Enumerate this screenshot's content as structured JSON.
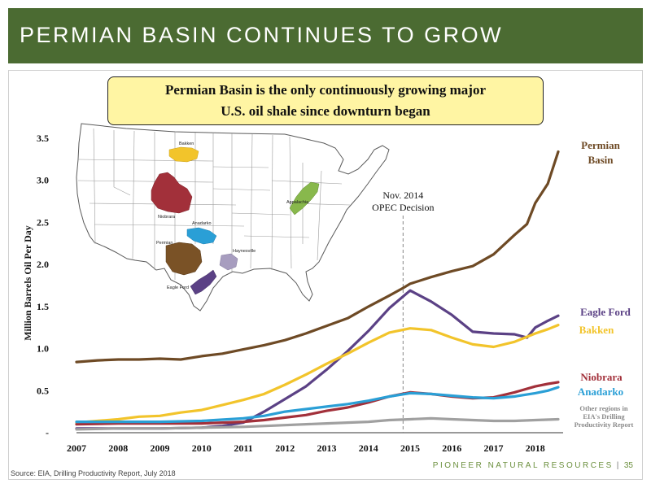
{
  "slide": {
    "title": "PERMIAN BASIN CONTINUES TO GROW",
    "callout_line1": "Permian Basin is the only continuously growing major",
    "callout_line2": "U.S. oil shale since downturn began",
    "source": "Source: EIA, Drilling Productivity Report, July 2018",
    "brand": "PIONEER NATURAL RESOURCES",
    "page_number": "35",
    "map_labels": {
      "bakken": "Bakken",
      "niobrara": "Niobrara",
      "anadarko": "Anadarko",
      "permian": "Permian",
      "haynesville": "Haynesville",
      "eagle_ford": "Eagle Ford",
      "appalachia": "Appalachia"
    }
  },
  "chart_data": {
    "type": "line",
    "ylabel": "Million Barrels Oil Per Day",
    "xlabel": "",
    "ylim": [
      0,
      3.5
    ],
    "xlim": [
      2007,
      2018.55
    ],
    "y_ticks": [
      "-",
      "0.5",
      "1.0",
      "1.5",
      "2.0",
      "2.5",
      "3.0",
      "3.5"
    ],
    "x_ticks": [
      "2007",
      "2008",
      "2009",
      "2010",
      "2011",
      "2012",
      "2013",
      "2014",
      "2015",
      "2016",
      "2017",
      "2018"
    ],
    "annotation": {
      "line1": "Nov. 2014",
      "line2": "OPEC Decision",
      "x": 2014.83
    },
    "series": [
      {
        "name": "Permian Basin",
        "color": "#6e4a25",
        "label_lines": [
          "Permian",
          "Basin"
        ],
        "x": [
          2007,
          2007.5,
          2008,
          2008.5,
          2009,
          2009.5,
          2010,
          2010.5,
          2011,
          2011.5,
          2012,
          2012.5,
          2013,
          2013.5,
          2014,
          2014.5,
          2014.83,
          2015,
          2015.5,
          2016,
          2016.5,
          2017,
          2017.5,
          2017.8,
          2018,
          2018.3,
          2018.55
        ],
        "y": [
          0.84,
          0.86,
          0.87,
          0.87,
          0.88,
          0.87,
          0.91,
          0.94,
          0.99,
          1.04,
          1.1,
          1.18,
          1.27,
          1.36,
          1.5,
          1.63,
          1.72,
          1.77,
          1.85,
          1.92,
          1.98,
          2.12,
          2.35,
          2.48,
          2.73,
          2.96,
          3.34
        ]
      },
      {
        "name": "Eagle Ford",
        "color": "#5b4185",
        "label_lines": [
          "Eagle Ford"
        ],
        "x": [
          2007,
          2009,
          2010,
          2010.5,
          2011,
          2011.5,
          2012,
          2012.5,
          2013,
          2013.5,
          2014,
          2014.5,
          2015,
          2015.5,
          2016,
          2016.5,
          2017,
          2017.5,
          2017.8,
          2018,
          2018.3,
          2018.55
        ],
        "y": [
          0.05,
          0.05,
          0.06,
          0.08,
          0.12,
          0.25,
          0.4,
          0.55,
          0.75,
          0.97,
          1.21,
          1.48,
          1.69,
          1.56,
          1.4,
          1.2,
          1.18,
          1.17,
          1.13,
          1.25,
          1.33,
          1.39
        ]
      },
      {
        "name": "Bakken",
        "color": "#f2c42b",
        "label_lines": [
          "Bakken"
        ],
        "x": [
          2007,
          2007.5,
          2008,
          2008.5,
          2009,
          2009.5,
          2010,
          2010.5,
          2011,
          2011.5,
          2012,
          2012.5,
          2013,
          2013.5,
          2014,
          2014.5,
          2015,
          2015.5,
          2016,
          2016.5,
          2017,
          2017.5,
          2018,
          2018.3,
          2018.55
        ],
        "y": [
          0.12,
          0.14,
          0.16,
          0.19,
          0.2,
          0.24,
          0.27,
          0.33,
          0.39,
          0.46,
          0.57,
          0.69,
          0.82,
          0.94,
          1.07,
          1.19,
          1.24,
          1.22,
          1.13,
          1.05,
          1.02,
          1.08,
          1.18,
          1.23,
          1.28
        ]
      },
      {
        "name": "Niobrara",
        "color": "#a2303a",
        "label_lines": [
          "Niobrara"
        ],
        "x": [
          2007,
          2008,
          2009,
          2010,
          2011,
          2011.5,
          2012,
          2012.5,
          2013,
          2013.5,
          2014,
          2014.5,
          2015,
          2015.5,
          2016,
          2016.5,
          2017,
          2017.5,
          2018,
          2018.3,
          2018.55
        ],
        "y": [
          0.1,
          0.11,
          0.11,
          0.11,
          0.13,
          0.15,
          0.18,
          0.21,
          0.26,
          0.3,
          0.36,
          0.43,
          0.48,
          0.46,
          0.43,
          0.41,
          0.42,
          0.48,
          0.55,
          0.58,
          0.6
        ]
      },
      {
        "name": "Anadarko",
        "color": "#2a9fd6",
        "label_lines": [
          "Anadarko"
        ],
        "x": [
          2007,
          2008,
          2009,
          2010,
          2011,
          2011.5,
          2012,
          2012.5,
          2013,
          2013.5,
          2014,
          2014.5,
          2015,
          2015.5,
          2016,
          2016.5,
          2017,
          2017.5,
          2018,
          2018.3,
          2018.55
        ],
        "y": [
          0.13,
          0.13,
          0.13,
          0.14,
          0.17,
          0.2,
          0.25,
          0.28,
          0.31,
          0.34,
          0.38,
          0.43,
          0.47,
          0.46,
          0.44,
          0.42,
          0.41,
          0.43,
          0.47,
          0.5,
          0.54
        ]
      },
      {
        "name": "Other regions in EIA's Drilling Productivity Report",
        "color": "#a0a0a0",
        "label_lines": [
          "Other regions in",
          "EIA's Drilling",
          "Productivity Report"
        ],
        "x": [
          2007,
          2008,
          2009,
          2010,
          2011,
          2012,
          2013,
          2014,
          2014.5,
          2015,
          2015.5,
          2016,
          2016.5,
          2017,
          2017.5,
          2018,
          2018.55
        ],
        "y": [
          0.04,
          0.05,
          0.05,
          0.06,
          0.07,
          0.09,
          0.11,
          0.13,
          0.15,
          0.16,
          0.17,
          0.16,
          0.15,
          0.14,
          0.14,
          0.15,
          0.16
        ]
      }
    ]
  }
}
